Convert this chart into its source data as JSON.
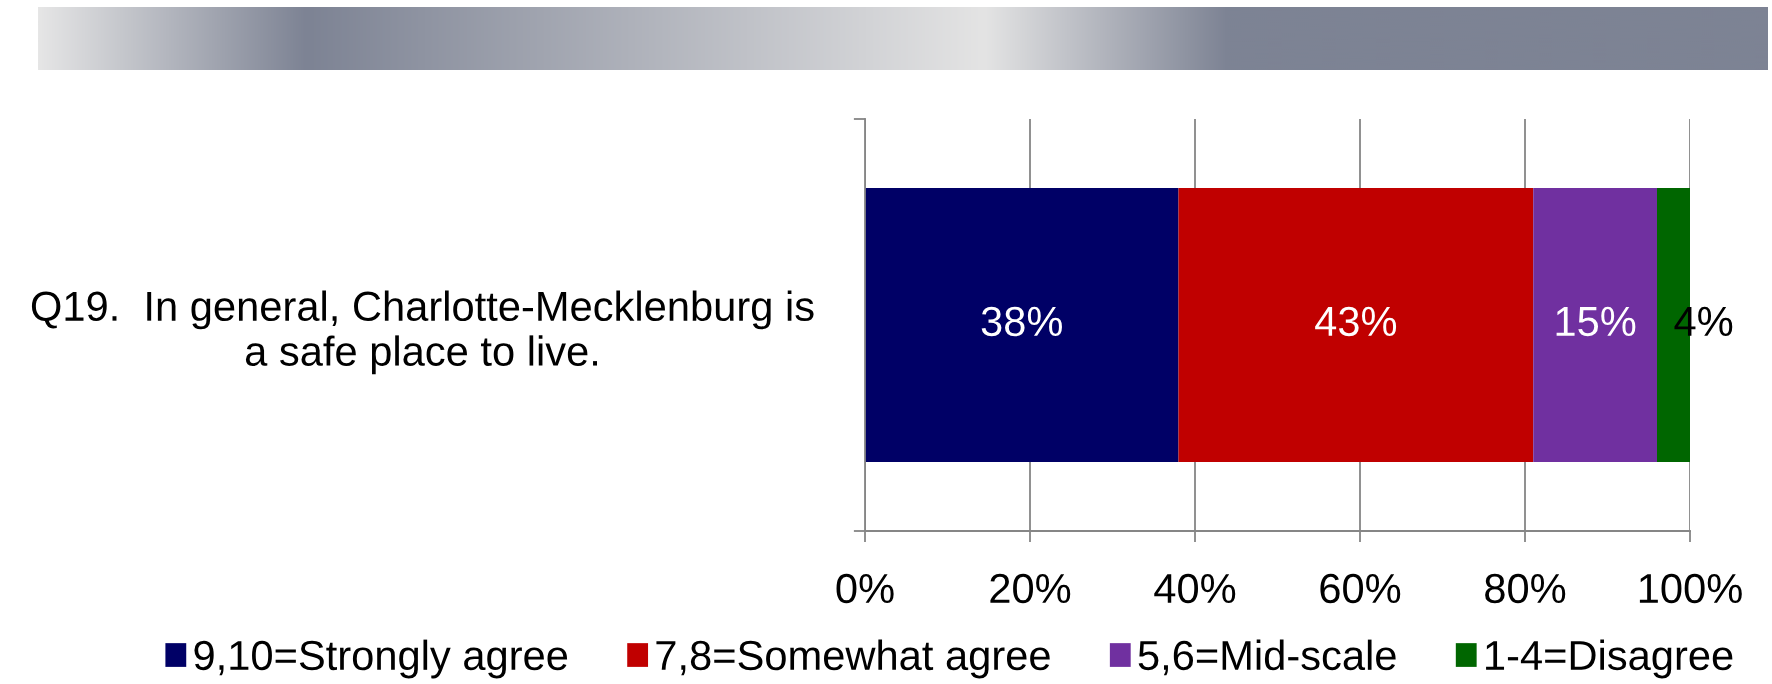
{
  "chart_data": {
    "type": "bar",
    "orientation": "horizontal",
    "stacked": true,
    "categories": [
      "Q19.  In general, Charlotte-Mecklenburg is a safe place to live."
    ],
    "series": [
      {
        "name": "9,10=Strongly agree",
        "color": "#000066",
        "values": [
          38
        ],
        "value_labels": [
          "38%"
        ]
      },
      {
        "name": "7,8=Somewhat agree",
        "color": "#c00000",
        "values": [
          43
        ],
        "value_labels": [
          "43%"
        ]
      },
      {
        "name": "5,6=Mid-scale",
        "color": "#7030a0",
        "values": [
          15
        ],
        "value_labels": [
          "15%"
        ]
      },
      {
        "name": "1-4=Disagree",
        "color": "#006600",
        "values": [
          4
        ],
        "value_labels": [
          "4%"
        ]
      }
    ],
    "xlim": [
      0,
      100
    ],
    "xticks": [
      {
        "value": 0,
        "label": "0%"
      },
      {
        "value": 20,
        "label": "20%"
      },
      {
        "value": 40,
        "label": "40%"
      },
      {
        "value": 60,
        "label": "60%"
      },
      {
        "value": 80,
        "label": "80%"
      },
      {
        "value": 100,
        "label": "100%"
      }
    ],
    "grid": "x",
    "legend": "bottom"
  }
}
